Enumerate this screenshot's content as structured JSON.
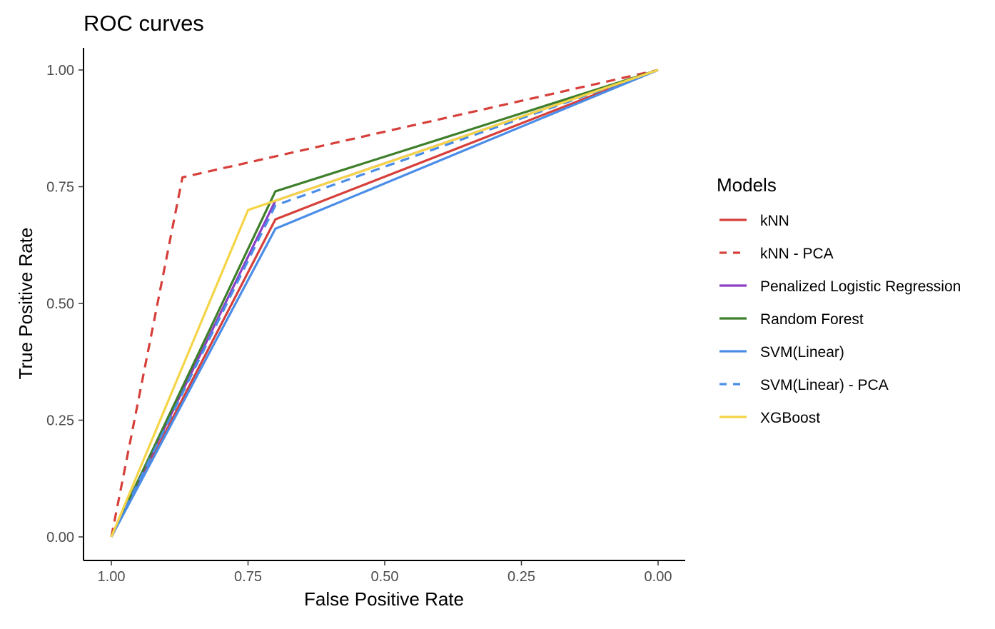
{
  "chart_data": {
    "type": "line",
    "title": "ROC curves",
    "xlabel": "False Positive Rate",
    "ylabel": "True Positive Rate",
    "x_reversed": true,
    "xlim": [
      1.0,
      0.0
    ],
    "ylim": [
      0.0,
      1.0
    ],
    "x_ticks": [
      1.0,
      0.75,
      0.5,
      0.25,
      0.0
    ],
    "x_tick_labels": [
      "1.00",
      "0.75",
      "0.50",
      "0.25",
      "0.00"
    ],
    "y_ticks": [
      0.0,
      0.25,
      0.5,
      0.75,
      1.0
    ],
    "y_tick_labels": [
      "0.00",
      "0.25",
      "0.50",
      "0.75",
      "1.00"
    ],
    "grid": false,
    "legend_title": "Models",
    "legend_position": "right",
    "series": [
      {
        "name": "kNN",
        "color": "#D63F3A",
        "dashed": false,
        "points": [
          [
            1.0,
            0.0
          ],
          [
            0.7,
            0.68
          ],
          [
            0.0,
            1.0
          ]
        ]
      },
      {
        "name": "kNN - PCA",
        "color": "#D63F3A",
        "dashed": true,
        "points": [
          [
            1.0,
            0.0
          ],
          [
            0.87,
            0.77
          ],
          [
            0.0,
            1.0
          ]
        ]
      },
      {
        "name": "Penalized Logistic Regression",
        "color": "#8B3FC8",
        "dashed": false,
        "points": [
          [
            1.0,
            0.0
          ],
          [
            0.7,
            0.72
          ],
          [
            0.0,
            1.0
          ]
        ]
      },
      {
        "name": "Random Forest",
        "color": "#3E7F2A",
        "dashed": false,
        "points": [
          [
            1.0,
            0.0
          ],
          [
            0.7,
            0.74
          ],
          [
            0.0,
            1.0
          ]
        ]
      },
      {
        "name": "SVM(Linear)",
        "color": "#4A8DE8",
        "dashed": false,
        "points": [
          [
            1.0,
            0.0
          ],
          [
            0.7,
            0.66
          ],
          [
            0.0,
            1.0
          ]
        ]
      },
      {
        "name": "SVM(Linear) - PCA",
        "color": "#4A8DE8",
        "dashed": true,
        "points": [
          [
            1.0,
            0.0
          ],
          [
            0.7,
            0.71
          ],
          [
            0.0,
            1.0
          ]
        ]
      },
      {
        "name": "XGBoost",
        "color": "#F5D547",
        "dashed": false,
        "points": [
          [
            1.0,
            0.0
          ],
          [
            0.75,
            0.7
          ],
          [
            0.0,
            1.0
          ]
        ]
      }
    ]
  }
}
